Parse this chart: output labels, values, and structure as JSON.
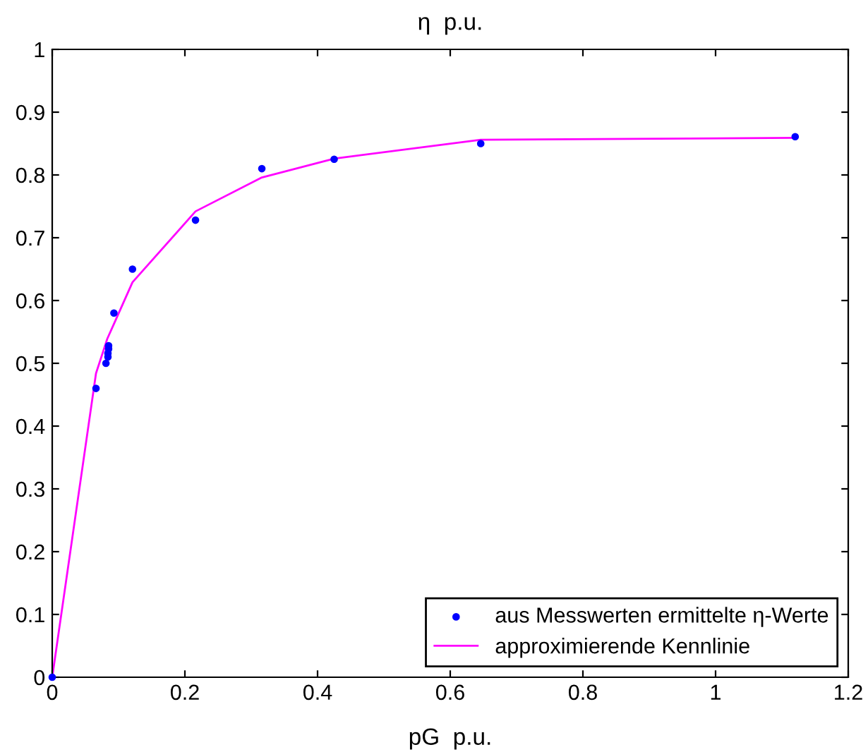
{
  "chart_data": {
    "type": "scatter",
    "title": "η  p.u.",
    "xlabel": "pG  p.u.",
    "series": [
      {
        "name": "aus Messwerten ermittelte η-Werte",
        "color": "#0000ff",
        "marker": "circle",
        "x": [
          0,
          0.066,
          0.081,
          0.084,
          0.084,
          0.085,
          0.085,
          0.093,
          0.121,
          0.216,
          0.316,
          0.425,
          0.646,
          1.12
        ],
        "values": [
          0,
          0.46,
          0.5,
          0.51,
          0.516,
          0.523,
          0.528,
          0.58,
          0.65,
          0.728,
          0.81,
          0.825,
          0.85,
          0.861
        ]
      },
      {
        "name": "approximierende Kennlinie",
        "type": "line",
        "color": "#ff00ff",
        "x": [
          0,
          0.066,
          0.083,
          0.094,
          0.121,
          0.216,
          0.316,
          0.425,
          0.646,
          1.12
        ],
        "values": [
          0,
          0.484,
          0.539,
          0.565,
          0.629,
          0.742,
          0.796,
          0.826,
          0.856,
          0.859
        ]
      }
    ],
    "xlim": [
      0,
      1.2
    ],
    "ylim": [
      0,
      1
    ],
    "xticks": [
      0,
      0.2,
      0.4,
      0.6,
      0.8,
      1,
      1.2
    ],
    "yticks": [
      0,
      0.1,
      0.2,
      0.3,
      0.4,
      0.5,
      0.6,
      0.7,
      0.8,
      0.9,
      1
    ],
    "grid": false,
    "legend": "bottom right"
  }
}
